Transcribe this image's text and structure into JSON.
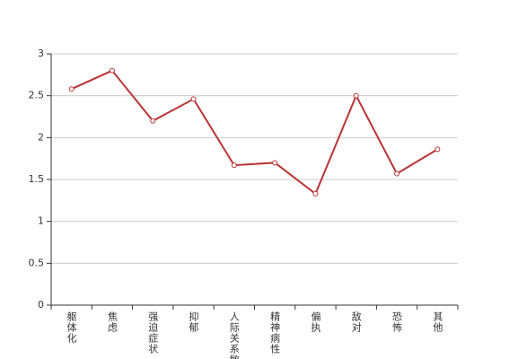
{
  "chart_data": {
    "type": "line",
    "categories": [
      "躯体化",
      "焦虑",
      "强迫症状",
      "抑郁",
      "人际关系敏感",
      "精神病性",
      "偏执",
      "敌对",
      "恐怖",
      "其他"
    ],
    "series": [
      {
        "color": "#b93434",
        "values": [
          2.58,
          2.8,
          2.2,
          2.46,
          1.67,
          1.7,
          1.33,
          2.5,
          1.57,
          1.86
        ]
      }
    ],
    "ylim": [
      0,
      3
    ],
    "yticks": [
      0,
      0.5,
      1,
      1.5,
      2,
      2.5,
      3
    ],
    "grid": true
  }
}
